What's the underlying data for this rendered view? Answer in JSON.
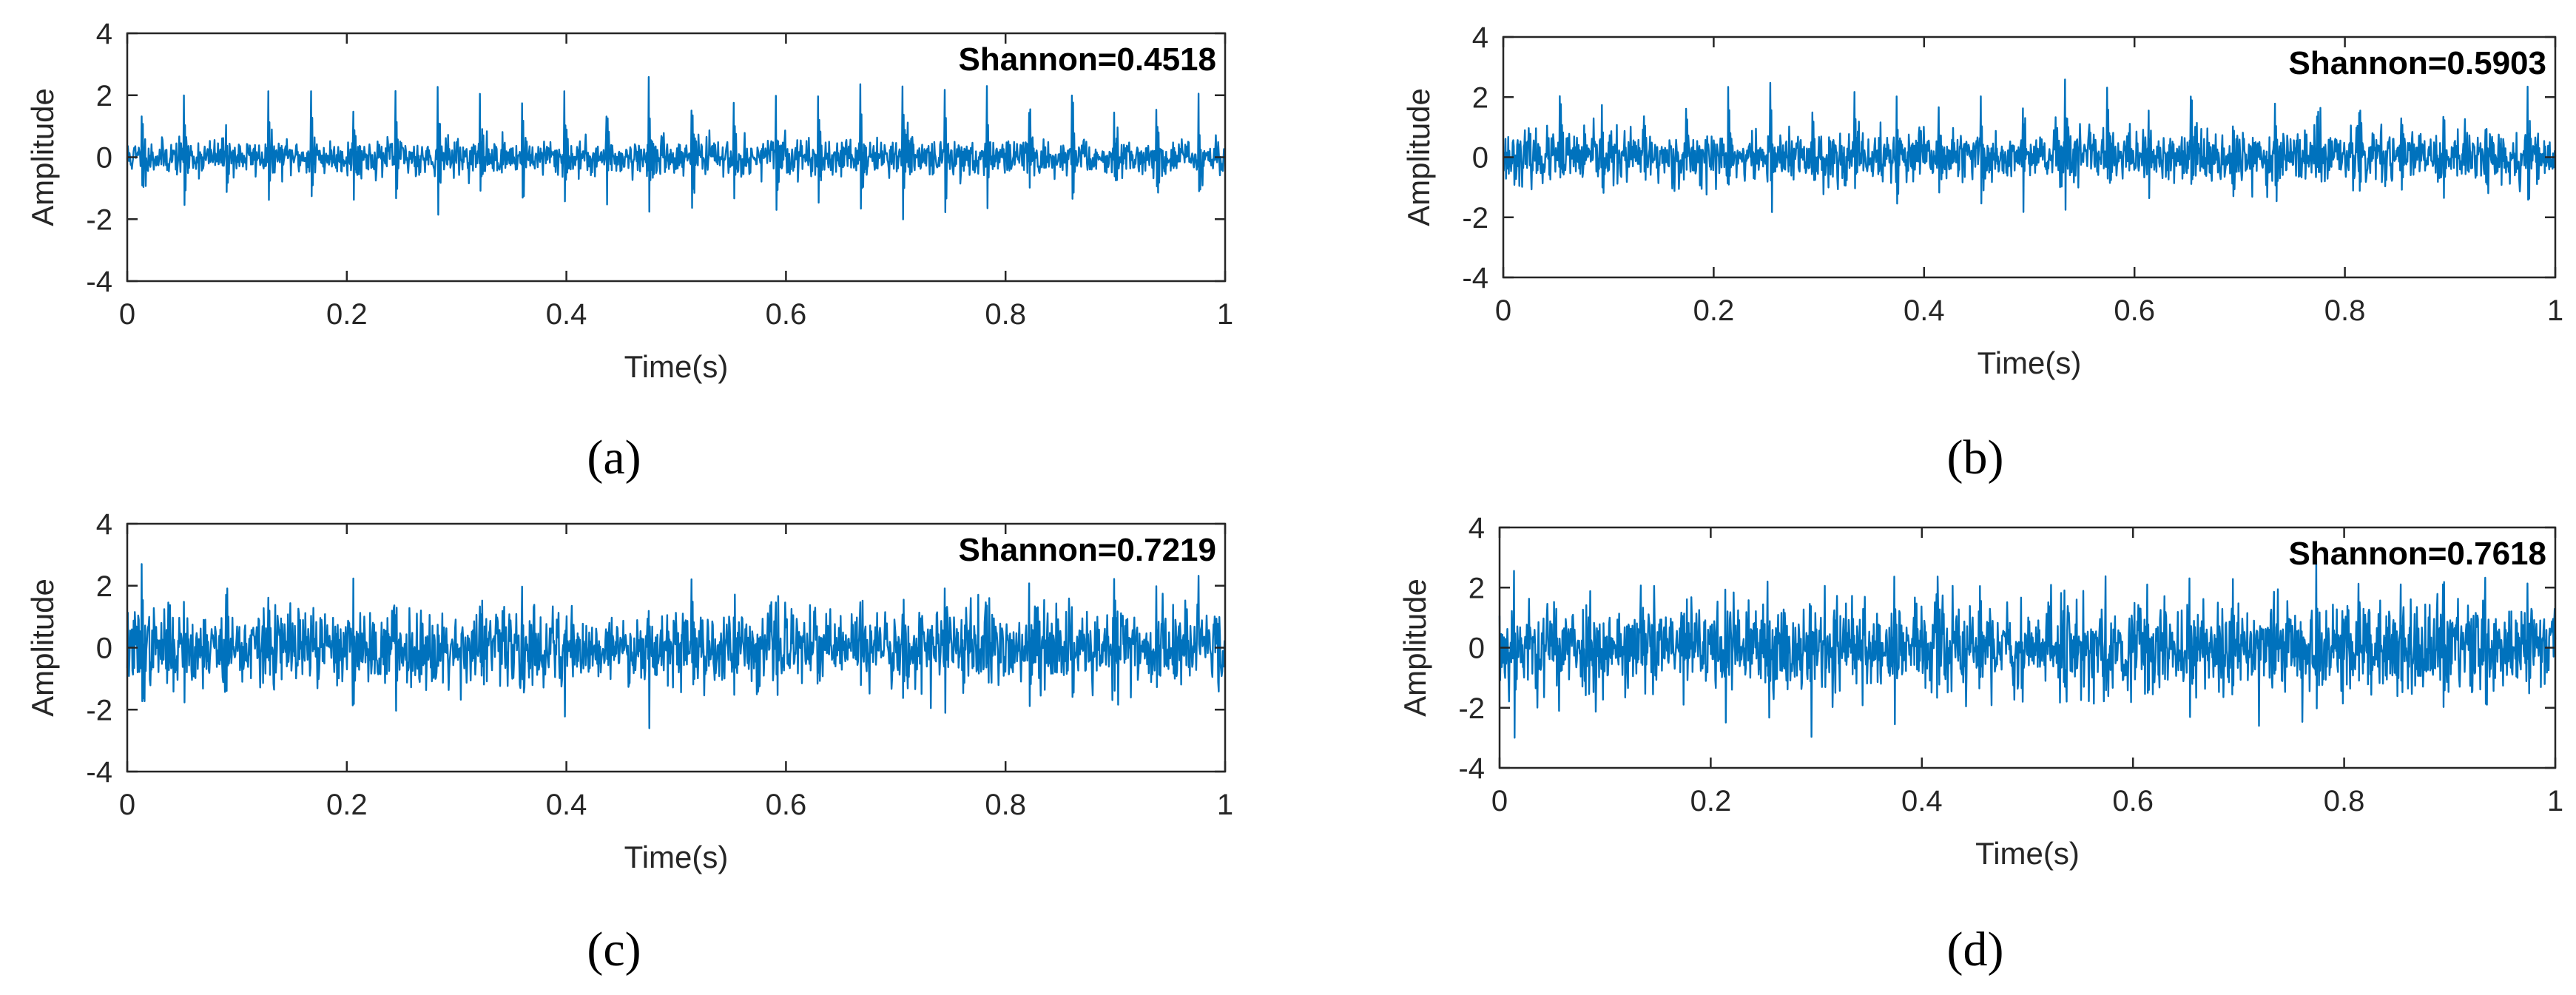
{
  "figure": {
    "signal_color": "#0072BD",
    "axis_color": "#262626"
  },
  "chart_data": [
    {
      "type": "line",
      "panel": "(a)",
      "xlabel": "Time(s)",
      "ylabel": "Amplitude",
      "annotation": "Shannon=0.4518",
      "xlim": [
        0,
        1
      ],
      "ylim": [
        -4,
        4
      ],
      "xticks": [
        "0",
        "0.2",
        "0.4",
        "0.6",
        "0.8",
        "1"
      ],
      "yticks": [
        "4",
        "2",
        "0",
        "-2",
        "-4"
      ],
      "signal": {
        "noise_sigma": 0.28,
        "impulse_period_s": 0.0385,
        "impulse_pos_peak": 1.9,
        "impulse_neg_peak": -1.9,
        "max": 2.7,
        "min": -2.3,
        "seed": 11
      }
    },
    {
      "type": "line",
      "panel": "(b)",
      "xlabel": "Time(s)",
      "ylabel": "Amplitude",
      "annotation": "Shannon=0.5903",
      "xlim": [
        0,
        1
      ],
      "ylim": [
        -4,
        4
      ],
      "xticks": [
        "0",
        "0.2",
        "0.4",
        "0.6",
        "0.8",
        "1"
      ],
      "yticks": [
        "4",
        "2",
        "0",
        "-2",
        "-4"
      ],
      "signal": {
        "noise_sigma": 0.42,
        "impulse_period_s": 0.04,
        "impulse_pos_peak": 1.8,
        "impulse_neg_peak": -1.5,
        "max": 2.7,
        "min": -2.2,
        "seed": 23
      }
    },
    {
      "type": "line",
      "panel": "(c)",
      "xlabel": "Time(s)",
      "ylabel": "Amplitude",
      "annotation": "Shannon=0.7219",
      "xlim": [
        0,
        1
      ],
      "ylim": [
        -4,
        4
      ],
      "xticks": [
        "0",
        "0.2",
        "0.4",
        "0.6",
        "0.8",
        "1"
      ],
      "yticks": [
        "4",
        "2",
        "0",
        "-2",
        "-4"
      ],
      "signal": {
        "noise_sigma": 0.6,
        "impulse_period_s": 0.0385,
        "impulse_pos_peak": 1.7,
        "impulse_neg_peak": -1.6,
        "max": 2.7,
        "min": -2.6,
        "seed": 37
      }
    },
    {
      "type": "line",
      "panel": "(d)",
      "xlabel": "Time(s)",
      "ylabel": "Amplitude",
      "annotation": "Shannon=0.7618",
      "xlim": [
        0,
        1
      ],
      "ylim": [
        -4,
        4
      ],
      "xticks": [
        "0",
        "0.2",
        "0.4",
        "0.6",
        "0.8",
        "1"
      ],
      "yticks": [
        "4",
        "2",
        "0",
        "-2",
        "-4"
      ],
      "signal": {
        "noise_sigma": 0.75,
        "impulse_period_s": 0.04,
        "impulse_pos_peak": 1.8,
        "impulse_neg_peak": -1.8,
        "max": 3.1,
        "min": -3.4,
        "seed": 53
      }
    }
  ]
}
